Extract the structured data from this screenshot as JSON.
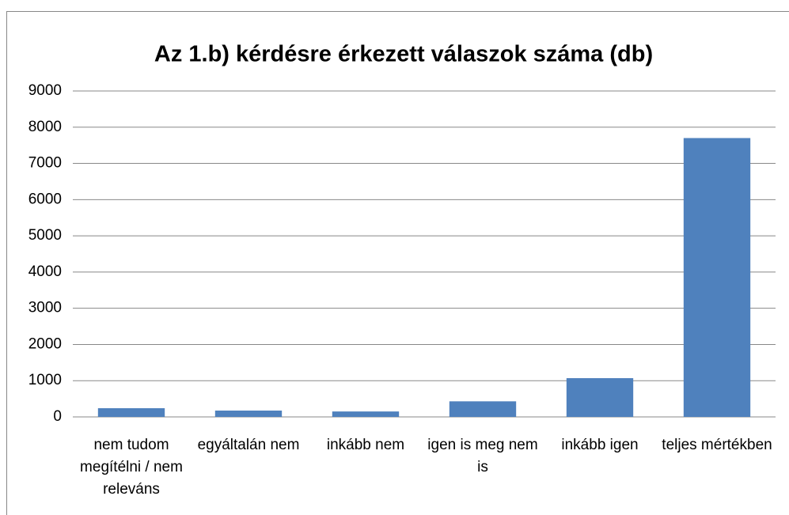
{
  "chart_data": {
    "type": "bar",
    "title": "Az 1.b) kérdésre érkezett válaszok száma (db)",
    "categories": [
      "nem tudom megítélni / nem releváns",
      "egyáltalán nem",
      "inkább nem",
      "igen is meg nem is",
      "inkább igen",
      "teljes mértékben"
    ],
    "values": [
      240,
      175,
      150,
      430,
      1070,
      7700
    ],
    "color": "#4f81bd",
    "ylim": [
      0,
      9000
    ],
    "yticks": [
      0,
      1000,
      2000,
      3000,
      4000,
      5000,
      6000,
      7000,
      8000,
      9000
    ],
    "grid": true
  }
}
